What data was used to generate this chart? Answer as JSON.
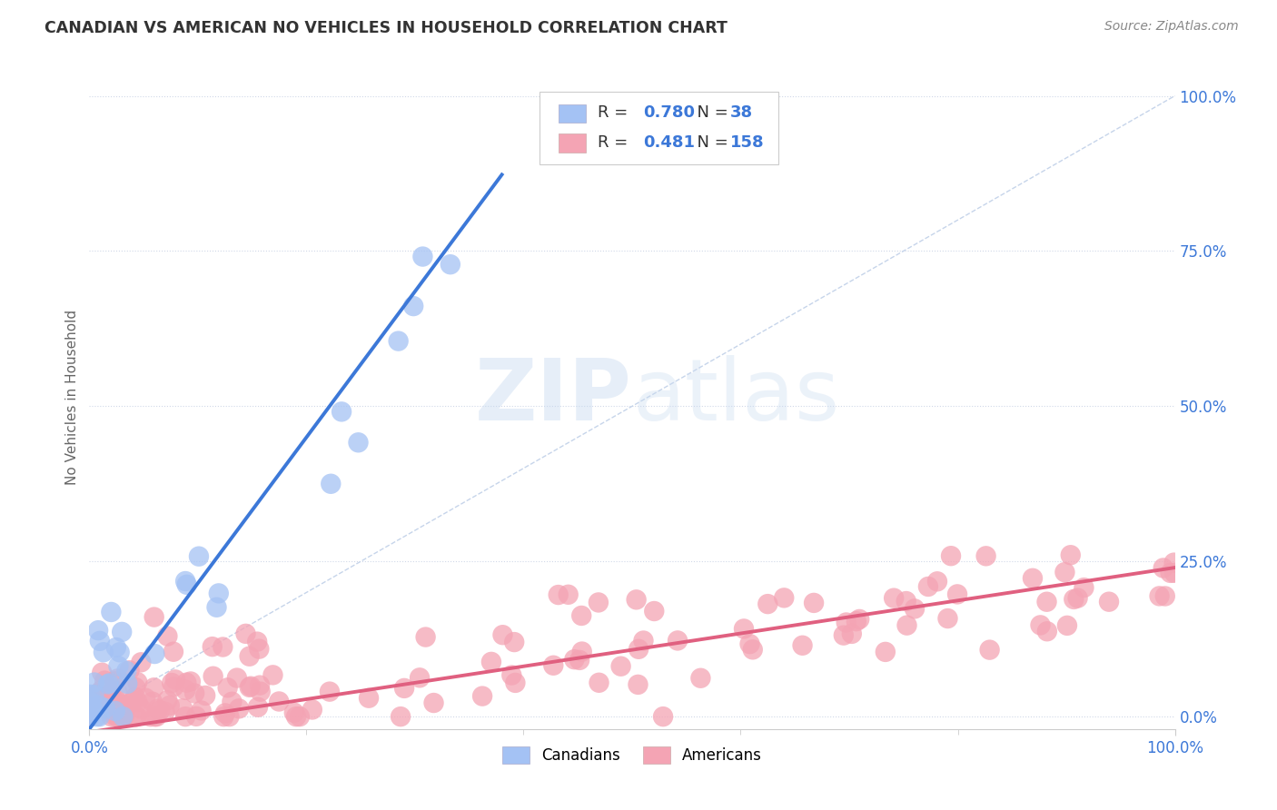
{
  "title": "CANADIAN VS AMERICAN NO VEHICLES IN HOUSEHOLD CORRELATION CHART",
  "source": "Source: ZipAtlas.com",
  "ylabel": "No Vehicles in Household",
  "xlim": [
    0,
    1.0
  ],
  "ylim": [
    -0.02,
    1.05
  ],
  "ytick_labels": [
    "100.0%",
    "75.0%",
    "50.0%",
    "25.0%",
    "0.0%"
  ],
  "ytick_positions": [
    1.0,
    0.75,
    0.5,
    0.25,
    0.0
  ],
  "canada_R": 0.78,
  "canada_N": 38,
  "usa_R": 0.481,
  "usa_N": 158,
  "canada_color": "#a4c2f4",
  "canada_edge": "#a4c2f4",
  "usa_color": "#f4a4b4",
  "usa_edge": "#f4a4b4",
  "canada_line_color": "#3c78d8",
  "usa_line_color": "#e06080",
  "diagonal_color": "#c0d0e8",
  "background_color": "#ffffff",
  "grid_color": "#d0d8e8",
  "legend_text_color": "#3c78d8",
  "title_color": "#333333",
  "source_color": "#888888",
  "ylabel_color": "#666666",
  "xtick_color": "#3c78d8",
  "ytick_color": "#3c78d8"
}
